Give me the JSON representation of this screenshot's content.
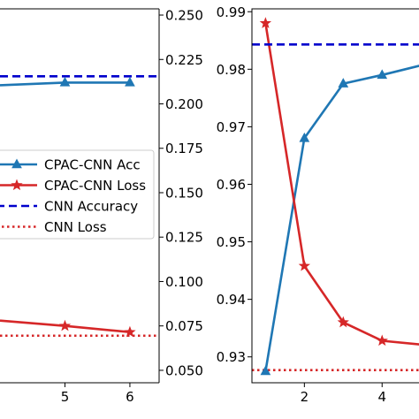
{
  "chart_data": [
    {
      "type": "line",
      "x": [
        5,
        6
      ],
      "xticks": [
        5,
        6
      ],
      "xlim": [
        4.0,
        6.45
      ],
      "y_right_ticks": [
        "0.050",
        "0.075",
        "0.100",
        "0.125",
        "0.150",
        "0.175",
        "0.200",
        "0.225",
        "0.250"
      ],
      "y_right_lim": [
        0.043,
        0.2535
      ],
      "legend": {
        "placement": "center-left",
        "entries": [
          {
            "label": "CPAC-CNN Acc",
            "color": "#1f77b4",
            "style": "solid",
            "marker": "triangle"
          },
          {
            "label": "CPAC-CNN Loss",
            "color": "#d62728",
            "style": "solid",
            "marker": "star"
          },
          {
            "label": "CNN Accuracy",
            "color": "#0000cc",
            "style": "dashed",
            "marker": "none"
          },
          {
            "label": "CNN Loss",
            "color": "#d62728",
            "style": "dotted",
            "marker": "none"
          }
        ]
      },
      "series": [
        {
          "name": "CPAC-CNN Acc",
          "axis": "right",
          "x": [
            4.0,
            5,
            6
          ],
          "values": [
            0.2105,
            0.212,
            0.212
          ]
        },
        {
          "name": "CPAC-CNN Loss",
          "axis": "right",
          "x": [
            4.0,
            5,
            6
          ],
          "values": [
            0.078,
            0.075,
            0.0715
          ]
        },
        {
          "name": "CNN Accuracy",
          "axis": "right",
          "constant": 0.2155
        },
        {
          "name": "CNN Loss",
          "axis": "right",
          "constant": 0.0695
        }
      ]
    },
    {
      "type": "line",
      "xticks": [
        2,
        4
      ],
      "xlim": [
        0.65,
        5.2
      ],
      "yticks": [
        "0.93",
        "0.94",
        "0.95",
        "0.96",
        "0.97",
        "0.98",
        "0.99"
      ],
      "ylim": [
        0.9255,
        0.9905
      ],
      "series": [
        {
          "name": "CPAC-CNN Acc",
          "x": [
            1,
            2,
            3,
            4,
            5.2
          ],
          "values": [
            0.9275,
            0.968,
            0.9775,
            0.979,
            0.981
          ]
        },
        {
          "name": "CPAC-CNN Loss",
          "x": [
            1,
            2,
            3,
            4,
            5.2
          ],
          "values": [
            0.988,
            0.9458,
            0.936,
            0.9328,
            0.932
          ]
        },
        {
          "name": "CNN Accuracy",
          "constant": 0.9843
        },
        {
          "name": "CNN Loss",
          "constant": 0.9277
        }
      ]
    }
  ]
}
